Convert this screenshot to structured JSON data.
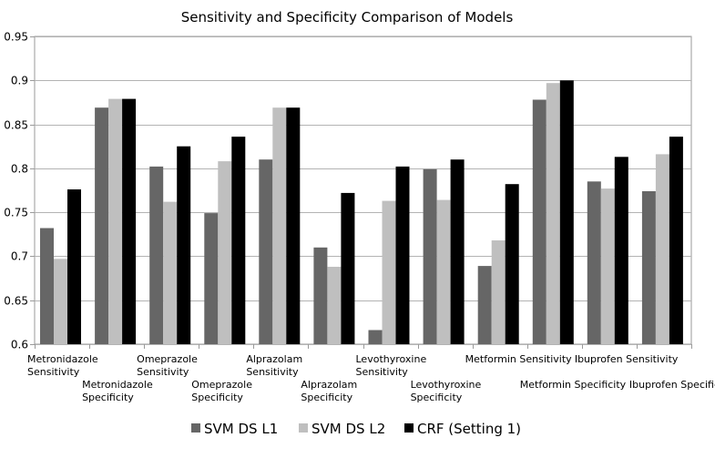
{
  "chart_data": {
    "type": "bar",
    "title": "Sensitivity and Specificity Comparison of Models",
    "xlabel": "",
    "ylabel": "",
    "ylim": [
      0.6,
      0.95
    ],
    "yticks": [
      "0.6",
      "0.65",
      "0.7",
      "0.75",
      "0.8",
      "0.85",
      "0.9",
      "0.95"
    ],
    "grid": true,
    "legend_position": "bottom",
    "categories": [
      "Metronidazole Sensitivity",
      "Metronidazole Specificity",
      "Omeprazole Sensitivity",
      "Omeprazole Specificity",
      "Alprazolam Sensitivity",
      "Alprazolam Specificity",
      "Levothyroxine Sensitivity",
      "Levothyroxine Specificity",
      "Metformin Sensitivity",
      "Metformin Specificity",
      "Ibuprofen Sensitivity",
      "Ibuprofen Specificity"
    ],
    "category_label_lines": [
      [
        "Metronidazole",
        "Sensitivity"
      ],
      [
        "Metronidazole",
        "Specificity"
      ],
      [
        "Omeprazole",
        "Sensitivity"
      ],
      [
        "Omeprazole",
        "Specificity"
      ],
      [
        "Alprazolam",
        "Sensitivity"
      ],
      [
        "Alprazolam",
        "Specificity"
      ],
      [
        "Levothyroxine",
        "Sensitivity"
      ],
      [
        "Levothyroxine",
        "Specificity"
      ],
      [
        "Metformin Sensitivity"
      ],
      [
        "Metformin Specificity"
      ],
      [
        "Ibuprofen Sensitivity"
      ],
      [
        "Ibuprofen Specificity"
      ]
    ],
    "series": [
      {
        "name": "SVM DS L1",
        "color": "#666666",
        "values": [
          0.732,
          0.869,
          0.802,
          0.749,
          0.81,
          0.71,
          0.616,
          0.799,
          0.689,
          0.878,
          0.785,
          0.774
        ]
      },
      {
        "name": "SVM DS L2",
        "color": "#bfbfbf",
        "values": [
          0.697,
          0.879,
          0.762,
          0.808,
          0.869,
          0.688,
          0.763,
          0.764,
          0.718,
          0.897,
          0.777,
          0.816
        ]
      },
      {
        "name": "CRF (Setting 1)",
        "color": "#000000",
        "values": [
          0.776,
          0.879,
          0.825,
          0.836,
          0.869,
          0.772,
          0.802,
          0.81,
          0.782,
          0.9,
          0.813,
          0.836
        ]
      }
    ]
  }
}
